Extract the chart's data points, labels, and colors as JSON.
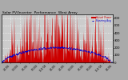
{
  "title": "Solar PV/Inverter  Performance  West Array",
  "bg_color": "#aaaaaa",
  "plot_bg": "#cccccc",
  "bar_color": "#cc0000",
  "avg_color": "#0000cc",
  "grid_color": "#ffffff",
  "ylim": [
    0,
    650
  ],
  "yticks": [
    0,
    100,
    200,
    300,
    400,
    500,
    600
  ],
  "num_points": 365,
  "legend_actual": "Actual Power",
  "legend_avg": "Running Avg"
}
